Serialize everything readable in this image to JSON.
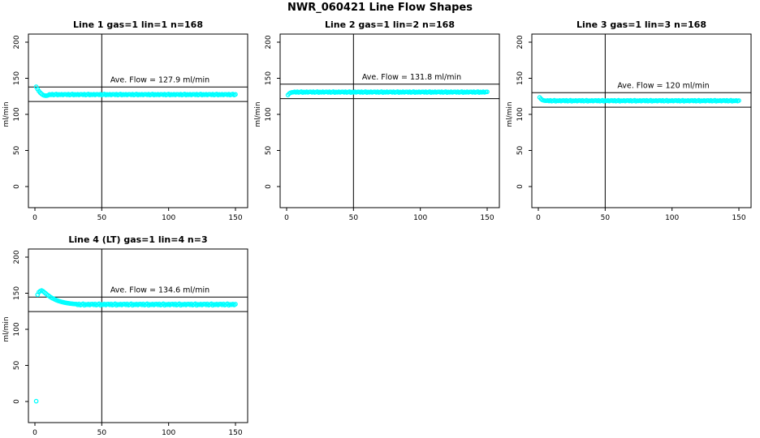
{
  "figure": {
    "title": "NWR_060421  Line Flow Shapes",
    "background": "#ffffff",
    "axis_color": "#000000",
    "point_color": "#00ffff"
  },
  "chart_data": [
    {
      "type": "scatter",
      "title": "Line 1 gas=1 lin=1 n=168",
      "annotation": "Ave. Flow =  127.9  ml/min",
      "ave_flow": 127.9,
      "ylabel": "ml/min",
      "xlim": [
        -5,
        160
      ],
      "ylim": [
        -25,
        210
      ],
      "xticks": [
        0,
        50,
        100,
        150
      ],
      "yticks": [
        0,
        50,
        100,
        150,
        200
      ],
      "vline_x": 50,
      "hlines": [
        117.9,
        137.9
      ],
      "marker": "open-circle",
      "color": "#00ffff",
      "x_start": 1,
      "x_step": 1,
      "y": [
        138.2,
        135.0,
        132.2,
        130.0,
        128.3,
        127.0,
        126.2,
        125.8,
        126.0,
        126.5,
        127.8,
        127.1,
        128.0,
        126.9,
        127.5,
        128.1,
        126.8,
        127.6,
        127.2,
        127.9,
        127.0,
        127.7,
        127.8,
        127.1,
        128.0,
        126.9,
        127.5,
        128.1,
        126.8,
        127.6,
        127.2,
        127.9,
        127.0,
        127.7,
        127.8,
        127.1,
        128.0,
        126.9,
        127.5,
        128.1,
        126.8,
        127.6,
        127.2,
        127.9,
        127.0,
        127.7,
        127.8,
        127.1,
        128.0,
        126.9,
        127.5,
        128.1,
        126.8,
        127.6,
        127.2,
        127.9,
        127.0,
        127.7,
        127.8,
        127.1,
        128.0,
        126.9,
        127.5,
        128.1,
        126.8,
        127.6,
        127.2,
        127.9,
        127.0,
        127.7,
        127.8,
        127.1,
        128.0,
        126.9,
        127.5,
        128.1,
        126.8,
        127.6,
        127.2,
        127.9,
        127.0,
        127.7,
        127.8,
        127.1,
        128.0,
        126.9,
        127.5,
        128.1,
        126.8,
        127.6,
        127.2,
        127.9,
        127.0,
        127.7,
        127.8,
        127.1,
        128.0,
        126.9,
        127.5,
        128.1,
        126.8,
        127.6,
        127.2,
        127.9,
        127.0,
        127.7,
        127.8,
        127.1,
        128.0,
        126.9,
        127.5,
        128.1,
        126.8,
        127.6,
        127.2,
        127.9,
        127.0,
        127.7,
        127.8,
        127.1,
        128.0,
        126.9,
        127.5,
        128.1,
        126.8,
        127.6,
        127.2,
        127.9,
        127.0,
        127.7,
        127.8,
        127.1,
        128.0,
        126.9,
        127.5,
        128.1,
        126.8,
        127.6,
        127.2,
        127.9,
        127.0,
        127.7,
        127.8,
        127.1,
        128.0,
        126.9,
        127.5,
        128.1,
        126.8,
        127.6
      ]
    },
    {
      "type": "scatter",
      "title": "Line 2 gas=1 lin=2 n=168",
      "annotation": "Ave. Flow =  131.8  ml/min",
      "ave_flow": 131.8,
      "ylabel": "ml/min",
      "xlim": [
        -5,
        160
      ],
      "ylim": [
        -25,
        210
      ],
      "xticks": [
        0,
        50,
        100,
        150
      ],
      "yticks": [
        0,
        50,
        100,
        150,
        200
      ],
      "vline_x": 50,
      "hlines": [
        121.8,
        141.8
      ],
      "marker": "open-circle",
      "color": "#00ffff",
      "x_start": 1,
      "x_step": 1,
      "y": [
        126.8,
        128.8,
        130.0,
        130.5,
        130.7,
        131.2,
        130.5,
        131.4,
        130.3,
        130.9,
        131.5,
        130.2,
        131.0,
        130.6,
        131.3,
        130.4,
        131.1,
        131.2,
        130.5,
        131.4,
        130.3,
        130.9,
        131.5,
        130.2,
        131.0,
        130.6,
        131.3,
        130.4,
        131.1,
        131.2,
        130.5,
        131.4,
        130.3,
        130.9,
        131.5,
        130.2,
        131.0,
        130.6,
        131.3,
        130.4,
        131.1,
        131.2,
        130.5,
        131.4,
        130.3,
        130.9,
        131.5,
        130.2,
        131.0,
        130.6,
        131.3,
        130.4,
        131.1,
        131.2,
        130.5,
        131.4,
        130.3,
        130.9,
        131.5,
        130.2,
        131.0,
        130.6,
        131.3,
        130.4,
        131.1,
        131.2,
        130.5,
        131.4,
        130.3,
        130.9,
        131.5,
        130.2,
        131.0,
        130.6,
        131.3,
        130.4,
        131.1,
        131.2,
        130.5,
        131.4,
        130.3,
        130.9,
        131.5,
        130.2,
        131.0,
        130.6,
        131.3,
        130.4,
        131.1,
        131.2,
        130.5,
        131.4,
        130.3,
        130.9,
        131.5,
        130.2,
        131.0,
        130.6,
        131.3,
        130.4,
        131.1,
        131.2,
        130.5,
        131.4,
        130.3,
        130.9,
        131.5,
        130.2,
        131.0,
        130.6,
        131.3,
        130.4,
        131.1,
        131.2,
        130.5,
        131.4,
        130.3,
        130.9,
        131.5,
        130.2,
        131.0,
        130.6,
        131.3,
        130.4,
        131.1,
        131.2,
        130.5,
        131.4,
        130.3,
        130.9,
        131.5,
        130.2,
        131.0,
        130.6,
        131.3,
        130.4,
        131.1,
        131.2,
        130.5,
        131.4,
        130.3,
        130.9,
        131.5,
        130.2,
        131.0,
        130.6,
        131.3,
        130.4,
        131.1,
        131.2
      ]
    },
    {
      "type": "scatter",
      "title": "Line 3 gas=1 lin=3 n=168",
      "annotation": "Ave. Flow =  120  ml/min",
      "ave_flow": 120,
      "ylabel": "ml/min",
      "xlim": [
        -5,
        160
      ],
      "ylim": [
        -25,
        210
      ],
      "xticks": [
        0,
        50,
        100,
        150
      ],
      "yticks": [
        0,
        50,
        100,
        150,
        200
      ],
      "vline_x": 50,
      "hlines": [
        110,
        130
      ],
      "marker": "open-circle",
      "color": "#00ffff",
      "x_start": 1,
      "x_step": 1,
      "y": [
        123.5,
        121.5,
        120.0,
        119.3,
        119.0,
        118.9,
        119.2,
        118.5,
        119.4,
        118.3,
        118.9,
        119.5,
        118.2,
        119.0,
        118.6,
        119.3,
        118.4,
        119.1,
        119.2,
        118.5,
        119.4,
        118.3,
        118.9,
        119.5,
        118.2,
        119.0,
        118.6,
        119.3,
        118.4,
        119.1,
        119.2,
        118.5,
        119.4,
        118.3,
        118.9,
        119.5,
        118.2,
        119.0,
        118.6,
        119.3,
        118.4,
        119.1,
        119.2,
        118.5,
        119.4,
        118.3,
        118.9,
        119.5,
        118.2,
        119.0,
        118.6,
        119.3,
        118.4,
        119.1,
        119.2,
        118.5,
        119.4,
        118.3,
        118.9,
        119.5,
        118.2,
        119.0,
        118.6,
        119.3,
        118.4,
        119.1,
        119.2,
        118.5,
        119.4,
        118.3,
        118.9,
        119.5,
        118.2,
        119.0,
        118.6,
        119.3,
        118.4,
        119.1,
        119.2,
        118.5,
        119.4,
        118.3,
        118.9,
        119.5,
        118.2,
        119.0,
        118.6,
        119.3,
        118.4,
        119.1,
        119.2,
        118.5,
        119.4,
        118.3,
        118.9,
        119.5,
        118.2,
        119.0,
        118.6,
        119.3,
        118.4,
        119.1,
        119.2,
        118.5,
        119.4,
        118.3,
        118.9,
        119.5,
        118.2,
        119.0,
        118.6,
        119.3,
        118.4,
        119.1,
        119.2,
        118.5,
        119.4,
        118.3,
        118.9,
        119.5,
        118.2,
        119.0,
        118.6,
        119.3,
        118.4,
        119.1,
        119.2,
        118.5,
        119.4,
        118.3,
        118.9,
        119.5,
        118.2,
        119.0,
        118.6,
        119.3,
        118.4,
        119.1,
        119.2,
        118.5,
        119.4,
        118.3,
        118.9,
        119.5,
        118.2,
        119.0,
        118.6,
        119.3,
        118.4,
        119.1
      ]
    },
    {
      "type": "scatter",
      "title": "Line 4 (LT) gas=1 lin=4 n=3",
      "annotation": "Ave. Flow =  134.6  ml/min",
      "ave_flow": 134.6,
      "ylabel": "ml/min",
      "xlim": [
        -5,
        160
      ],
      "ylim": [
        -25,
        210
      ],
      "xticks": [
        0,
        50,
        100,
        150
      ],
      "yticks": [
        0,
        50,
        100,
        150,
        200
      ],
      "vline_x": 50,
      "hlines": [
        124.6,
        144.6
      ],
      "marker": "open-circle",
      "color": "#00ffff",
      "x_start": 1,
      "x_step": 1,
      "y": [
        0.5,
        148.0,
        151.5,
        153.0,
        153.8,
        152.8,
        151.2,
        149.8,
        148.2,
        146.8,
        145.5,
        144.3,
        143.2,
        142.2,
        141.3,
        140.5,
        139.8,
        139.1,
        138.5,
        138.0,
        137.5,
        137.1,
        136.7,
        136.4,
        136.1,
        135.8,
        135.6,
        135.4,
        135.2,
        135.0,
        134.9,
        133.9,
        135.2,
        133.6,
        134.5,
        135.4,
        133.4,
        134.6,
        134.0,
        135.1,
        133.7,
        134.8,
        134.9,
        133.9,
        135.2,
        133.6,
        134.5,
        135.4,
        133.4,
        134.6,
        134.0,
        135.1,
        133.7,
        134.8,
        134.9,
        133.9,
        135.2,
        133.6,
        134.5,
        135.4,
        133.4,
        134.6,
        134.0,
        135.1,
        133.7,
        134.8,
        134.9,
        133.9,
        135.2,
        133.6,
        134.5,
        135.4,
        133.4,
        134.6,
        134.0,
        135.1,
        133.7,
        134.8,
        134.9,
        133.9,
        135.2,
        133.6,
        134.5,
        135.4,
        133.4,
        134.6,
        134.0,
        135.1,
        133.7,
        134.8,
        134.9,
        133.9,
        135.2,
        133.6,
        134.5,
        135.4,
        133.4,
        134.6,
        134.0,
        135.1,
        133.7,
        134.8,
        134.9,
        133.9,
        135.2,
        133.6,
        134.5,
        135.4,
        133.4,
        134.6,
        134.0,
        135.1,
        133.7,
        134.8,
        134.9,
        133.9,
        135.2,
        133.6,
        134.5,
        135.4,
        133.4,
        134.6,
        134.0,
        135.1,
        133.7,
        134.8,
        134.9,
        133.9,
        135.2,
        133.6,
        134.5,
        135.4,
        133.4,
        134.6,
        134.0,
        135.1,
        133.7,
        134.8,
        134.9,
        133.9,
        135.2,
        133.6,
        134.5,
        135.4,
        133.4,
        134.6,
        134.0,
        135.1,
        133.7,
        134.8
      ]
    }
  ]
}
